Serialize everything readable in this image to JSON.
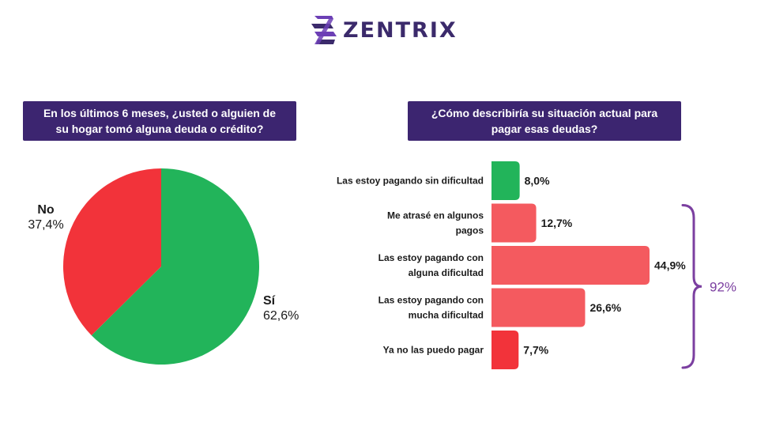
{
  "brand": {
    "name": "ZENTRIX",
    "mark_color": "#6c3fb5",
    "text_color": "#3b2a6b"
  },
  "colors": {
    "header_bg": "#3c2570",
    "pie_yes": "#22b45a",
    "pie_no": "#f2333a",
    "bar_ok": "#22b45a",
    "bar_trouble": "#f45a5f",
    "bar_critical": "#f2333a",
    "bracket": "#7b3fa0"
  },
  "chart_data": [
    {
      "type": "pie",
      "title": "En los últimos 6 meses, ¿usted o alguien de su hogar tomó alguna deuda o crédito?",
      "title_lines": [
        "En los últimos 6 meses, ¿usted o alguien de",
        "su hogar tomó alguna deuda o crédito?"
      ],
      "slices": [
        {
          "label": "Sí",
          "value": 62.6,
          "value_label": "62,6%",
          "color": "#22b45a"
        },
        {
          "label": "No",
          "value": 37.4,
          "value_label": "37,4%",
          "color": "#f2333a"
        }
      ]
    },
    {
      "type": "bar",
      "orientation": "horizontal",
      "title": "¿Cómo describiría su situación actual para pagar esas deudas?",
      "title_lines": [
        "¿Cómo describiría su situación actual para",
        "pagar esas deudas?"
      ],
      "xlim": [
        0,
        50
      ],
      "categories": [
        [
          "Las estoy pagando sin dificultad"
        ],
        [
          "Me atrasé en algunos",
          "pagos"
        ],
        [
          "Las estoy pagando con",
          "alguna dificultad"
        ],
        [
          "Las estoy pagando con",
          "mucha dificultad"
        ],
        [
          "Ya no las puedo pagar"
        ]
      ],
      "values": [
        8.0,
        12.7,
        44.9,
        26.6,
        7.7
      ],
      "value_labels": [
        "8,0%",
        "12,7%",
        "44,9%",
        "26,6%",
        "7,7%"
      ],
      "bar_colors": [
        "#22b45a",
        "#f45a5f",
        "#f45a5f",
        "#f45a5f",
        "#f2333a"
      ],
      "bracket": {
        "label": "92%",
        "from_index": 1,
        "to_index": 4,
        "color": "#7b3fa0"
      }
    }
  ]
}
